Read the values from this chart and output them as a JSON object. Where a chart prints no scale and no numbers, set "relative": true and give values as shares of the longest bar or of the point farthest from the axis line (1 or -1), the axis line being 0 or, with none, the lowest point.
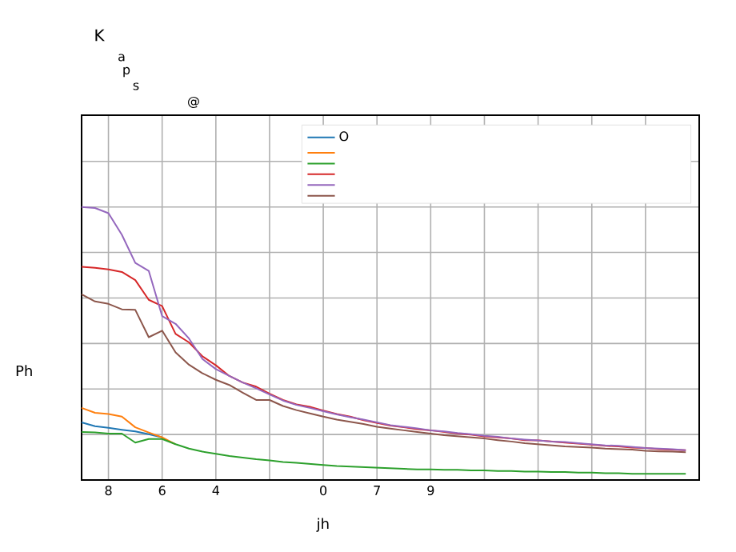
{
  "chart_data": {
    "type": "line",
    "title": "K",
    "annotations": [
      "a",
      "p",
      "s",
      "@"
    ],
    "xlabel": "jh",
    "ylabel": "Ph",
    "relative": true,
    "grid": true,
    "legend": "top",
    "categories": [
      null,
      null,
      "8",
      null,
      null,
      null,
      "6",
      null,
      null,
      null,
      "4",
      null,
      null,
      null,
      null,
      null,
      null,
      null,
      "0",
      null,
      null,
      null,
      "7",
      null,
      null,
      null,
      "9",
      null,
      null,
      null,
      null,
      null,
      null,
      null,
      null,
      null,
      null,
      null,
      null,
      null,
      null,
      null,
      null,
      null,
      null,
      null
    ],
    "series": [
      {
        "name": "O",
        "color": "#1f77b4",
        "values": [
          0.211,
          0.197,
          0.191,
          0.184,
          0.178,
          0.168,
          0.156,
          null,
          null,
          null,
          null,
          null,
          null,
          null,
          null,
          null,
          null,
          null,
          null,
          null,
          null,
          null,
          null,
          null,
          null,
          null,
          null,
          null,
          null,
          null,
          null,
          null,
          null,
          null,
          null,
          null,
          null,
          null,
          null,
          null,
          null,
          null,
          null,
          null,
          null,
          null
        ]
      },
      {
        "color": "#ff7f0e",
        "values": [
          0.264,
          0.246,
          0.242,
          0.232,
          0.193,
          0.174,
          0.156,
          0.131,
          null,
          null,
          null,
          null,
          null,
          null,
          null,
          null,
          null,
          null,
          null,
          null,
          null,
          null,
          null,
          null,
          null,
          null,
          null,
          null,
          null,
          null,
          null,
          null,
          null,
          null,
          null,
          null,
          null,
          null,
          null,
          null,
          null,
          null,
          null,
          null,
          null,
          null
        ]
      },
      {
        "color": "#2ca02c",
        "values": [
          0.176,
          0.174,
          0.17,
          0.17,
          0.137,
          0.15,
          0.15,
          0.131,
          0.115,
          0.104,
          0.096,
          0.088,
          0.082,
          0.076,
          0.072,
          0.066,
          0.063,
          0.059,
          0.055,
          0.051,
          0.049,
          0.047,
          0.045,
          0.043,
          0.041,
          0.039,
          0.039,
          0.037,
          0.037,
          0.035,
          0.035,
          0.033,
          0.033,
          0.031,
          0.031,
          0.029,
          0.029,
          0.027,
          0.027,
          0.025,
          0.025,
          0.023,
          0.023,
          0.023,
          0.023,
          0.023
        ]
      },
      {
        "color": "#d62728",
        "values": [
          0.781,
          0.777,
          0.771,
          0.762,
          0.732,
          0.66,
          0.637,
          0.535,
          0.504,
          0.453,
          0.42,
          0.381,
          0.357,
          0.342,
          0.316,
          0.293,
          0.277,
          0.268,
          0.254,
          0.242,
          0.232,
          0.219,
          0.209,
          0.199,
          0.193,
          0.186,
          0.182,
          0.176,
          0.17,
          0.166,
          0.16,
          0.156,
          0.152,
          0.146,
          0.145,
          0.141,
          0.137,
          0.133,
          0.129,
          0.125,
          0.123,
          0.119,
          0.117,
          0.113,
          0.111,
          0.109
        ]
      },
      {
        "color": "#9467bd",
        "values": [
          1.0,
          0.996,
          0.977,
          0.898,
          0.795,
          0.766,
          0.6,
          0.572,
          0.518,
          0.443,
          0.406,
          0.381,
          0.357,
          0.336,
          0.313,
          0.291,
          0.275,
          0.264,
          0.252,
          0.24,
          0.23,
          0.221,
          0.211,
          0.201,
          0.195,
          0.189,
          0.182,
          0.178,
          0.172,
          0.168,
          0.162,
          0.158,
          0.152,
          0.148,
          0.145,
          0.141,
          0.139,
          0.135,
          0.131,
          0.127,
          0.125,
          0.121,
          0.117,
          0.115,
          0.113,
          0.109
        ]
      },
      {
        "color": "#8c564b",
        "values": [
          0.68,
          0.654,
          0.645,
          0.625,
          0.623,
          0.523,
          0.547,
          0.467,
          0.422,
          0.391,
          0.367,
          0.348,
          0.32,
          0.293,
          0.293,
          0.271,
          0.256,
          0.244,
          0.232,
          0.221,
          0.213,
          0.205,
          0.195,
          0.188,
          0.182,
          0.176,
          0.17,
          0.164,
          0.16,
          0.156,
          0.152,
          0.146,
          0.141,
          0.135,
          0.131,
          0.127,
          0.123,
          0.121,
          0.119,
          0.115,
          0.113,
          0.111,
          0.107,
          0.105,
          0.104,
          0.102
        ]
      }
    ]
  }
}
